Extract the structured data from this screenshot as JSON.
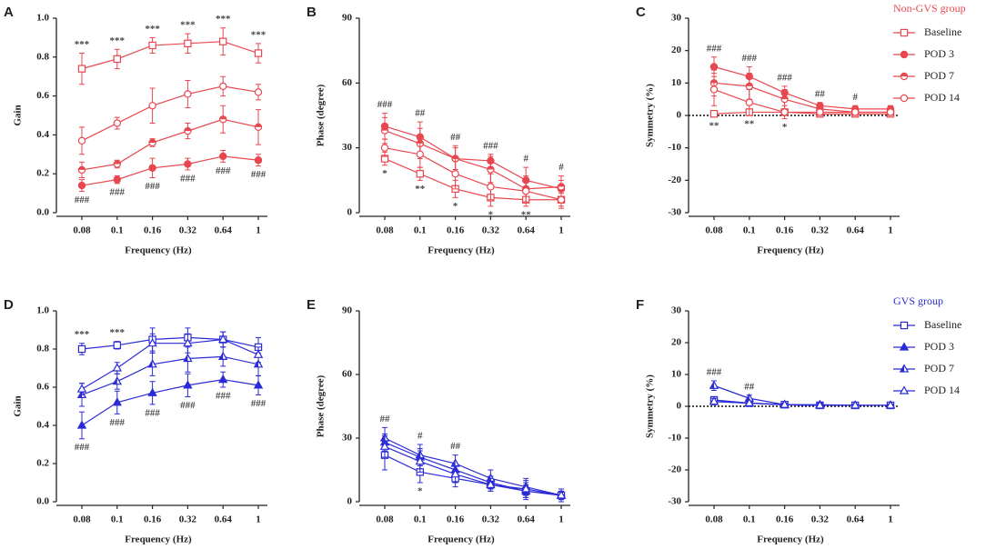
{
  "chart_data": [
    {
      "panel": "A",
      "type": "line",
      "ylabel": "Gain",
      "xlabel": "Frequency (Hz)",
      "categories": [
        "0.08",
        "0.1",
        "0.16",
        "0.32",
        "0.64",
        "1"
      ],
      "ylim": [
        0,
        1
      ],
      "yticks": [
        {
          "value": 0,
          "label": "0.0"
        },
        0.2,
        0.4,
        0.6,
        0.8,
        {
          "value": 1,
          "label": "1.0"
        }
      ],
      "series": [
        {
          "name": "Baseline",
          "color": "#e8474f",
          "marker": "square-open",
          "values": [
            0.74,
            0.79,
            0.86,
            0.87,
            0.88,
            0.82
          ],
          "errors": [
            0.08,
            0.05,
            0.04,
            0.05,
            0.07,
            0.05
          ]
        },
        {
          "name": "POD 3",
          "color": "#e8474f",
          "marker": "circle-filled",
          "values": [
            0.14,
            0.17,
            0.23,
            0.25,
            0.29,
            0.27
          ],
          "errors": [
            0.03,
            0.02,
            0.05,
            0.03,
            0.03,
            0.03
          ]
        },
        {
          "name": "POD 7",
          "color": "#e8474f",
          "marker": "circle-half",
          "values": [
            0.22,
            0.25,
            0.36,
            0.42,
            0.48,
            0.44
          ],
          "errors": [
            0.04,
            0.02,
            0.02,
            0.04,
            0.07,
            0.09
          ]
        },
        {
          "name": "POD 14",
          "color": "#e8474f",
          "marker": "circle-open",
          "values": [
            0.37,
            0.46,
            0.55,
            0.61,
            0.65,
            0.62
          ],
          "errors": [
            0.07,
            0.03,
            0.09,
            0.07,
            0.05,
            0.04
          ]
        }
      ],
      "annotations_above": [
        "***",
        "***",
        "***",
        "***",
        "***",
        "***"
      ],
      "annotations_below": [
        "###",
        "###",
        "###",
        "###",
        "###",
        "###"
      ]
    },
    {
      "panel": "B",
      "type": "line",
      "ylabel": "Phase (degree)",
      "xlabel": "Frequency (Hz)",
      "categories": [
        "0.08",
        "0.1",
        "0.16",
        "0.32",
        "0.64",
        "1"
      ],
      "ylim": [
        0,
        90
      ],
      "yticks": [
        0,
        30,
        60,
        90
      ],
      "series": [
        {
          "name": "Baseline",
          "color": "#e8474f",
          "marker": "square-open",
          "values": [
            25,
            18,
            11,
            7,
            6,
            6
          ],
          "errors": [
            3,
            3,
            4,
            4,
            3,
            3
          ]
        },
        {
          "name": "POD 3",
          "color": "#e8474f",
          "marker": "circle-filled",
          "values": [
            40,
            35,
            25,
            24,
            15,
            11
          ],
          "errors": [
            6,
            7,
            5,
            3,
            6,
            4
          ]
        },
        {
          "name": "POD 7",
          "color": "#e8474f",
          "marker": "circle-half",
          "values": [
            38,
            32,
            25,
            20,
            11,
            12
          ],
          "errors": [
            6,
            7,
            6,
            6,
            6,
            5
          ]
        },
        {
          "name": "POD 14",
          "color": "#e8474f",
          "marker": "circle-open",
          "values": [
            30,
            27,
            18,
            12,
            10,
            6
          ],
          "errors": [
            4,
            6,
            7,
            6,
            5,
            4
          ]
        }
      ],
      "annotations_above": [
        "###",
        "##",
        "##",
        "###",
        "#",
        "#"
      ],
      "annotations_below": [
        "*",
        "**",
        "*",
        "*",
        "**",
        null
      ]
    },
    {
      "panel": "C",
      "type": "line",
      "ylabel": "Symmetry (%)",
      "xlabel": "Frequency (Hz)",
      "categories": [
        "0.08",
        "0.1",
        "0.16",
        "0.32",
        "0.64",
        "1"
      ],
      "ylim": [
        -30,
        30
      ],
      "yticks": [
        -30,
        -20,
        -10,
        0,
        10,
        20,
        30
      ],
      "zero_line": true,
      "legend_title": "Non-GVS group",
      "series": [
        {
          "name": "Baseline",
          "color": "#e8474f",
          "marker": "square-open",
          "values": [
            0.5,
            1,
            1,
            0.5,
            0.5,
            0.5
          ],
          "errors": [
            1,
            1,
            1,
            1,
            1,
            1
          ]
        },
        {
          "name": "POD 3",
          "color": "#e8474f",
          "marker": "circle-filled",
          "values": [
            15,
            12,
            7,
            3,
            2,
            2
          ],
          "errors": [
            3,
            3,
            2,
            1,
            1,
            1
          ]
        },
        {
          "name": "POD 7",
          "color": "#e8474f",
          "marker": "circle-half",
          "values": [
            10,
            9,
            5,
            2,
            1,
            1
          ],
          "errors": [
            4,
            4,
            3,
            1,
            1,
            1
          ]
        },
        {
          "name": "POD 14",
          "color": "#e8474f",
          "marker": "circle-open",
          "values": [
            8,
            4,
            1,
            1,
            1,
            1
          ],
          "errors": [
            5,
            4,
            2,
            1,
            1,
            1
          ]
        }
      ],
      "annotations_above": [
        "###",
        "###",
        "###",
        "##",
        "#",
        null
      ],
      "annotations_below": [
        "**",
        "**",
        "*",
        null,
        null,
        null
      ]
    },
    {
      "panel": "D",
      "type": "line",
      "ylabel": "Gain",
      "xlabel": "Frequency (Hz)",
      "categories": [
        "0.08",
        "0.1",
        "0.16",
        "0.32",
        "0.64",
        "1"
      ],
      "ylim": [
        0,
        1
      ],
      "yticks": [
        {
          "value": 0,
          "label": "0.0"
        },
        0.2,
        0.4,
        0.6,
        0.8,
        {
          "value": 1,
          "label": "1.0"
        }
      ],
      "series": [
        {
          "name": "Baseline",
          "color": "#2b2bd6",
          "marker": "square-open",
          "values": [
            0.8,
            0.82,
            0.85,
            0.86,
            0.85,
            0.81
          ],
          "errors": [
            0.03,
            0.02,
            0.06,
            0.05,
            0.04,
            0.05
          ]
        },
        {
          "name": "POD 3",
          "color": "#2b2bd6",
          "marker": "triangle-filled",
          "values": [
            0.4,
            0.52,
            0.57,
            0.61,
            0.64,
            0.61
          ],
          "errors": [
            0.07,
            0.06,
            0.06,
            0.06,
            0.04,
            0.05
          ]
        },
        {
          "name": "POD 7",
          "color": "#2b2bd6",
          "marker": "triangle-half",
          "values": [
            0.56,
            0.63,
            0.72,
            0.75,
            0.76,
            0.72
          ],
          "errors": [
            0.06,
            0.04,
            0.06,
            0.07,
            0.05,
            0.06
          ]
        },
        {
          "name": "POD 14",
          "color": "#2b2bd6",
          "marker": "triangle-open",
          "values": [
            0.59,
            0.7,
            0.83,
            0.83,
            0.85,
            0.77
          ],
          "errors": [
            0.03,
            0.03,
            0.05,
            0.05,
            0.04,
            0.04
          ]
        }
      ],
      "annotations_above": [
        "***",
        "***",
        null,
        null,
        null,
        null
      ],
      "annotations_below": [
        "###",
        "###",
        "###",
        "###",
        "###",
        "###"
      ]
    },
    {
      "panel": "E",
      "type": "line",
      "ylabel": "Phase (degree)",
      "xlabel": "Frequency (Hz)",
      "categories": [
        "0.08",
        "0.1",
        "0.16",
        "0.32",
        "0.64",
        "1"
      ],
      "ylim": [
        0,
        90
      ],
      "yticks": [
        0,
        30,
        60,
        90
      ],
      "series": [
        {
          "name": "Baseline",
          "color": "#2b2bd6",
          "marker": "square-open",
          "values": [
            22,
            14,
            11,
            8,
            5,
            3
          ],
          "errors": [
            7,
            5,
            4,
            3,
            3,
            2
          ]
        },
        {
          "name": "POD 3",
          "color": "#2b2bd6",
          "marker": "triangle-filled",
          "values": [
            28,
            21,
            15,
            9,
            5,
            3
          ],
          "errors": [
            4,
            4,
            3,
            3,
            4,
            2
          ]
        },
        {
          "name": "POD 7",
          "color": "#2b2bd6",
          "marker": "triangle-half",
          "values": [
            30,
            22,
            18,
            11,
            7,
            3
          ],
          "errors": [
            5,
            5,
            4,
            4,
            4,
            3
          ]
        },
        {
          "name": "POD 14",
          "color": "#2b2bd6",
          "marker": "triangle-open",
          "values": [
            26,
            19,
            13,
            8,
            6,
            3
          ],
          "errors": [
            5,
            5,
            4,
            3,
            4,
            3
          ]
        }
      ],
      "annotations_above": [
        "##",
        "#",
        "##",
        null,
        null,
        null
      ],
      "annotations_below": [
        null,
        "*",
        null,
        null,
        null,
        null
      ]
    },
    {
      "panel": "F",
      "type": "line",
      "ylabel": "Symmetry (%)",
      "xlabel": "Frequency (Hz)",
      "categories": [
        "0.08",
        "0.1",
        "0.16",
        "0.32",
        "0.64",
        "1"
      ],
      "ylim": [
        -30,
        30
      ],
      "yticks": [
        -30,
        -20,
        -10,
        0,
        10,
        20,
        30
      ],
      "zero_line": true,
      "legend_title": "GVS group",
      "series": [
        {
          "name": "Baseline",
          "color": "#2b2bd6",
          "marker": "square-open",
          "values": [
            2,
            1,
            0.5,
            0.3,
            0.3,
            0.3
          ],
          "errors": [
            1,
            0.5,
            0.5,
            0.3,
            0.3,
            0.3
          ]
        },
        {
          "name": "POD 3",
          "color": "#2b2bd6",
          "marker": "triangle-filled",
          "values": [
            1.5,
            1,
            0.5,
            0.3,
            0.3,
            0.3
          ],
          "errors": [
            1,
            0.5,
            0.5,
            0.3,
            0.3,
            0.3
          ]
        },
        {
          "name": "POD 7",
          "color": "#2b2bd6",
          "marker": "triangle-half",
          "values": [
            6.5,
            2.5,
            0.5,
            0.5,
            0.3,
            0.3
          ],
          "errors": [
            1.5,
            1,
            0.5,
            0.5,
            0.3,
            0.3
          ]
        },
        {
          "name": "POD 14",
          "color": "#2b2bd6",
          "marker": "triangle-open",
          "values": [
            1.5,
            1,
            0.5,
            0.3,
            0.3,
            0.3
          ],
          "errors": [
            1,
            0.5,
            0.5,
            0.3,
            0.3,
            0.3
          ]
        }
      ],
      "annotations_above": [
        "###",
        "##",
        null,
        null,
        null,
        null
      ],
      "annotations_below": [
        null,
        null,
        null,
        null,
        null,
        null
      ]
    }
  ]
}
